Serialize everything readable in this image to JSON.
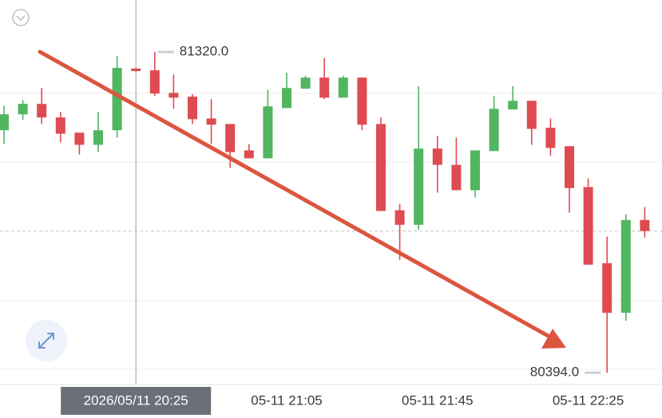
{
  "chart_data": {
    "type": "candlestick",
    "categories": [
      null,
      null,
      null,
      null,
      null,
      null,
      null,
      "2026/05/11 20:25",
      null,
      null,
      null,
      null,
      null,
      null,
      null,
      "05-11 21:05",
      null,
      null,
      null,
      null,
      null,
      null,
      null,
      "05-11 21:45",
      null,
      null,
      null,
      null,
      null,
      null,
      null,
      "05-11 22:25",
      null,
      null,
      null
    ],
    "open": [
      81094,
      81140,
      81170,
      81131,
      81087,
      81052,
      81094,
      81272,
      81267,
      81202,
      81191,
      81128,
      81112,
      81036,
      81013,
      81158,
      81214,
      81246,
      81188,
      81246,
      81112,
      80863,
      80821,
      81041,
      80994,
      80921,
      81034,
      81154,
      81179,
      81101,
      81048,
      80930,
      80710,
      80567,
      80835
    ],
    "high": [
      81165,
      81181,
      81216,
      81147,
      81087,
      81147,
      81308,
      81274,
      81320,
      81255,
      81198,
      81184,
      81112,
      81054,
      81211,
      81260,
      81251,
      81302,
      81251,
      81246,
      81131,
      80881,
      81221,
      81078,
      81073,
      81036,
      81193,
      81221,
      81179,
      81128,
      81048,
      80955,
      80787,
      80851,
      80872
    ],
    "low": [
      81054,
      81124,
      81112,
      81059,
      81024,
      81031,
      81073,
      81263,
      81193,
      81156,
      81112,
      81054,
      80985,
      81013,
      81013,
      81158,
      81214,
      81184,
      81188,
      81094,
      80861,
      80720,
      80807,
      80914,
      80921,
      80900,
      81034,
      81154,
      81052,
      81020,
      80856,
      80706,
      80394,
      80544,
      80784
    ],
    "close": [
      81140,
      81170,
      81131,
      81084,
      81052,
      81094,
      81274,
      81265,
      81200,
      81188,
      81126,
      81110,
      81031,
      81013,
      81163,
      81216,
      81246,
      81188,
      81246,
      81110,
      80861,
      80821,
      81041,
      80994,
      80921,
      81036,
      81156,
      81179,
      81098,
      81043,
      80927,
      80706,
      80567,
      80835,
      80803
    ],
    "up_color": "#52b560",
    "down_color": "#de4b51",
    "ylim": [
      80360,
      81470
    ],
    "high_marker": {
      "value": 81320,
      "label": "81320.0"
    },
    "low_marker": {
      "value": 80394,
      "label": "80394.0"
    },
    "crosshair_index": 7,
    "last_price_line": true
  }
}
